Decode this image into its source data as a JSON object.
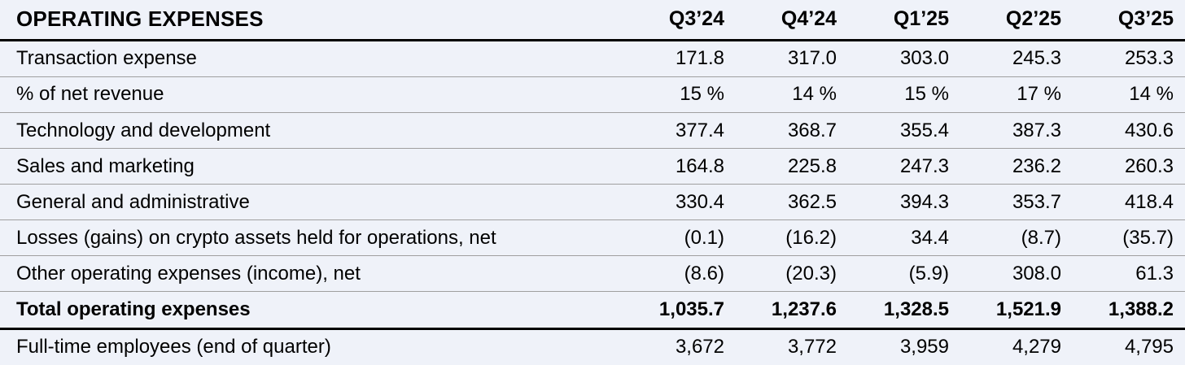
{
  "table": {
    "title": "OPERATING EXPENSES",
    "columns": [
      "Q3’24",
      "Q4’24",
      "Q1’25",
      "Q2’25",
      "Q3’25"
    ],
    "rows": [
      {
        "label": "Transaction expense",
        "style": "normal",
        "values": [
          "171.8",
          "317.0",
          "303.0",
          "245.3",
          "253.3"
        ]
      },
      {
        "label": "% of net revenue",
        "style": "normal",
        "values": [
          "15 %",
          "14 %",
          "15 %",
          "17 %",
          "14 %"
        ]
      },
      {
        "label": "Technology and development",
        "style": "normal",
        "values": [
          "377.4",
          "368.7",
          "355.4",
          "387.3",
          "430.6"
        ]
      },
      {
        "label": "Sales and marketing",
        "style": "normal",
        "values": [
          "164.8",
          "225.8",
          "247.3",
          "236.2",
          "260.3"
        ]
      },
      {
        "label": "General and administrative",
        "style": "normal",
        "values": [
          "330.4",
          "362.5",
          "394.3",
          "353.7",
          "418.4"
        ]
      },
      {
        "label": "Losses (gains) on crypto assets held for operations, net",
        "style": "normal",
        "values": [
          "(0.1)",
          "(16.2)",
          "34.4",
          "(8.7)",
          "(35.7)"
        ]
      },
      {
        "label": "Other operating expenses (income), net",
        "style": "normal",
        "values": [
          "(8.6)",
          "(20.3)",
          "(5.9)",
          "308.0",
          "61.3"
        ]
      },
      {
        "label": "Total operating expenses",
        "style": "total",
        "values": [
          "1,035.7",
          "1,237.6",
          "1,328.5",
          "1,521.9",
          "1,388.2"
        ]
      },
      {
        "label": "Full-time employees (end of quarter)",
        "style": "normal",
        "values": [
          "3,672",
          "3,772",
          "3,959",
          "4,279",
          "4,795"
        ]
      }
    ]
  },
  "colors": {
    "background": "#eff2f9",
    "row_separator": "#9f9f9f",
    "strong_rule": "#000000",
    "text": "#000000"
  },
  "chart_data": {
    "type": "table",
    "title": "OPERATING EXPENSES",
    "categories": [
      "Q3’24",
      "Q4’24",
      "Q1’25",
      "Q2’25",
      "Q3’25"
    ],
    "series": [
      {
        "name": "Transaction expense",
        "values": [
          171.8,
          317.0,
          303.0,
          245.3,
          253.3
        ]
      },
      {
        "name": "% of net revenue",
        "values": [
          15,
          14,
          15,
          17,
          14
        ],
        "unit": "%"
      },
      {
        "name": "Technology and development",
        "values": [
          377.4,
          368.7,
          355.4,
          387.3,
          430.6
        ]
      },
      {
        "name": "Sales and marketing",
        "values": [
          164.8,
          225.8,
          247.3,
          236.2,
          260.3
        ]
      },
      {
        "name": "General and administrative",
        "values": [
          330.4,
          362.5,
          394.3,
          353.7,
          418.4
        ]
      },
      {
        "name": "Losses (gains) on crypto assets held for operations, net",
        "values": [
          -0.1,
          -16.2,
          34.4,
          -8.7,
          -35.7
        ]
      },
      {
        "name": "Other operating expenses (income), net",
        "values": [
          -8.6,
          -20.3,
          -5.9,
          308.0,
          61.3
        ]
      },
      {
        "name": "Total operating expenses",
        "values": [
          1035.7,
          1237.6,
          1328.5,
          1521.9,
          1388.2
        ]
      },
      {
        "name": "Full-time employees (end of quarter)",
        "values": [
          3672,
          3772,
          3959,
          4279,
          4795
        ]
      }
    ]
  }
}
